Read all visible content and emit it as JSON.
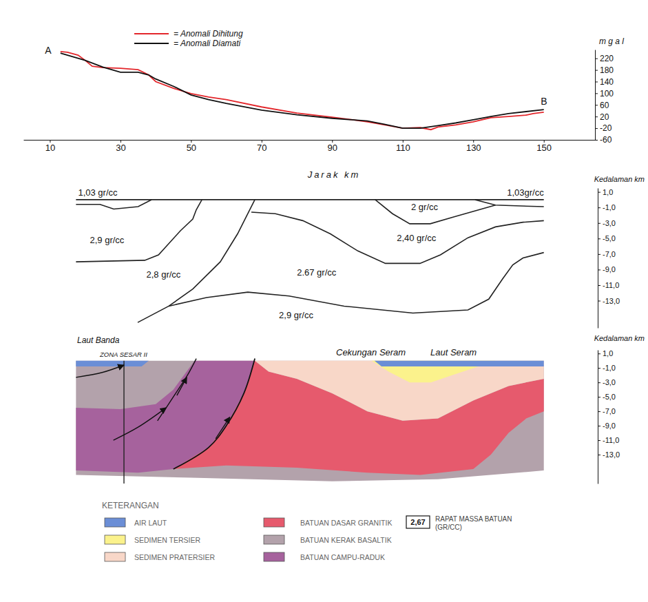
{
  "chart_data": {
    "type": "line",
    "x_label": "Jarak km",
    "y_label": "m g a l",
    "xlim": [
      2.5,
      164.5
    ],
    "xticks": [
      10,
      30,
      50,
      70,
      90,
      110,
      130,
      150
    ],
    "ylim": [
      -60,
      250
    ],
    "yticks": [
      220,
      180,
      140,
      100,
      60,
      20,
      -20,
      -60
    ],
    "legend": "upper left",
    "annotations": [
      "A",
      "B"
    ],
    "series": [
      {
        "name": "= Anomali Dihitung",
        "color": "#e3262b",
        "x": [
          13,
          15,
          18,
          20,
          22,
          25,
          30,
          35,
          38,
          40,
          45,
          50,
          55,
          60,
          70,
          80,
          90,
          100,
          105,
          110,
          115,
          118,
          120,
          125,
          130,
          135,
          140,
          145,
          147,
          150
        ],
        "values": [
          243,
          241,
          231,
          213,
          193,
          188,
          186,
          181,
          163,
          140,
          117,
          99,
          87,
          78,
          53,
          32,
          18,
          2,
          -9,
          -20,
          -18,
          -25,
          -16,
          -9,
          2,
          16,
          20,
          25,
          30,
          35
        ]
      },
      {
        "name": "= Anomali Diamati",
        "color": "#111111",
        "x": [
          13,
          20,
          25,
          30,
          35,
          38,
          40,
          45,
          50,
          55,
          60,
          70,
          80,
          90,
          100,
          105,
          110,
          115,
          120,
          125,
          130,
          135,
          140,
          145,
          150
        ],
        "values": [
          238,
          213,
          190,
          172,
          172,
          163,
          149,
          124,
          94,
          78,
          65,
          42,
          26,
          14,
          5,
          -7,
          -20,
          -20,
          -11,
          -2,
          9,
          20,
          30,
          37,
          44
        ]
      }
    ]
  },
  "density_model": {
    "depth_label": "Kedalaman km",
    "ylim": [
      1.5,
      -16.5
    ],
    "yticks": [
      {
        "value": 1,
        "label": "1,0"
      },
      {
        "value": -1,
        "label": "-1,0"
      },
      {
        "value": -3,
        "label": "-3,0"
      },
      {
        "value": -5,
        "label": "-5,0"
      },
      {
        "value": -7,
        "label": "-7,0"
      },
      {
        "value": -9,
        "label": "-9,0"
      },
      {
        "value": -11,
        "label": "-11,0"
      },
      {
        "value": -13,
        "label": "-13,0"
      }
    ],
    "labels": [
      "1,03 gr/cc",
      "1,03gr/cc",
      "2,9 gr/cc",
      "2,8 gr/cc",
      "2.67 gr/cc",
      "2,40 gr/cc",
      "2 gr/cc",
      "2,9 gr/cc"
    ],
    "boundaries": [
      {
        "x": [
          17.4,
          150
        ],
        "depth": [
          0,
          0
        ]
      },
      {
        "x": [
          17.4,
          24.2,
          28.1,
          35,
          38.8
        ],
        "depth": [
          -0.6,
          -0.6,
          -1.2,
          -0.9,
          0
        ]
      },
      {
        "x": [
          17.4,
          36.9,
          40.8,
          47,
          50.5,
          51.5,
          53.1
        ],
        "depth": [
          -8,
          -7.8,
          -7.1,
          -4,
          -2.5,
          -1.3,
          0
        ]
      },
      {
        "x": [
          34.9,
          43.7,
          50.5,
          58.3,
          63.2,
          66.1,
          68.1
        ],
        "depth": [
          -15.8,
          -13.7,
          -11.5,
          -8,
          -4.4,
          -1.8,
          0
        ]
      },
      {
        "x": [
          43.7,
          54.4,
          66.1,
          77.8,
          93.4,
          112.9,
          128.5,
          134.4,
          138.3,
          141.2,
          144.1,
          150
        ],
        "depth": [
          -13.7,
          -12.6,
          -11.9,
          -12.4,
          -13.7,
          -14.6,
          -14.2,
          -12.8,
          -10.2,
          -8.4,
          -7.5,
          -6.8
        ]
      },
      {
        "x": [
          67.1,
          73.9,
          81.7,
          89.5,
          97.3,
          105.1,
          114.9,
          120.7,
          128.5,
          136.3,
          144.1,
          150
        ],
        "depth": [
          -1.6,
          -1.8,
          -2.7,
          -4.4,
          -6.6,
          -8.2,
          -8.2,
          -7.1,
          -4.9,
          -3.5,
          -2.9,
          -2.7
        ]
      },
      {
        "x": [
          102.2,
          107.1,
          112,
          117.8,
          124.6,
          136.3
        ],
        "depth": [
          0,
          -1.8,
          -3.1,
          -3.1,
          -2.2,
          -0.7
        ]
      },
      {
        "x": [
          130.5,
          136.3,
          150
        ],
        "depth": [
          0,
          -0.7,
          -0.9
        ]
      }
    ]
  },
  "section": {
    "depth_label": "Kedalaman km",
    "ylim": [
      1.5,
      -17
    ],
    "yticks": [
      {
        "value": 1,
        "label": "1,0"
      },
      {
        "value": -1,
        "label": "-1,0"
      },
      {
        "value": -3,
        "label": "-3,0"
      },
      {
        "value": -5,
        "label": "-5,0"
      },
      {
        "value": -7,
        "label": "-7,0"
      },
      {
        "value": -9,
        "label": "-9,0"
      },
      {
        "value": -11,
        "label": "-11,0"
      },
      {
        "value": -13,
        "label": "-13,0"
      }
    ],
    "labels": [
      "Laut Banda",
      "ZONA SESAR II",
      "Cekungan Seram",
      "Laut Seram"
    ],
    "bodies": [
      {
        "color": "#b3a2ab",
        "x": [
          17.4,
          150,
          150,
          120,
          90,
          50,
          17.4
        ],
        "depth": [
          0,
          0,
          -15.2,
          -16.4,
          -16.7,
          -16.2,
          -15.8
        ]
      },
      {
        "color": "#a6629d",
        "x": [
          17.4,
          30,
          40,
          45,
          48,
          51,
          68.1,
          65,
          60,
          55,
          45,
          35,
          17.4
        ],
        "depth": [
          -6.5,
          -6.7,
          -6,
          -4,
          -2,
          0,
          0,
          -4.5,
          -9,
          -12,
          -15,
          -15.5,
          -15.2
        ]
      },
      {
        "color": "#e65a6d",
        "x": [
          68.1,
          72,
          80,
          90,
          100,
          110,
          120,
          130,
          140,
          150,
          150,
          145,
          140,
          135,
          130,
          115,
          100,
          80,
          60,
          45,
          55,
          60,
          65
        ],
        "depth": [
          0,
          -1.5,
          -2.5,
          -4.5,
          -7,
          -8.3,
          -8,
          -5.5,
          -3.5,
          -2.5,
          -7,
          -8,
          -10,
          -13,
          -15,
          -15.8,
          -15.5,
          -14.8,
          -14.5,
          -15,
          -12,
          -9,
          -4.5
        ]
      },
      {
        "color": "#f8d7c8",
        "x": [
          68.1,
          150,
          150,
          140,
          130,
          120,
          110,
          100,
          90,
          80,
          72
        ],
        "depth": [
          0,
          0,
          -2.5,
          -3.5,
          -5.5,
          -8,
          -8.3,
          -7,
          -4.5,
          -2.5,
          -1.5
        ]
      },
      {
        "color": "#fbf28c",
        "x": [
          101.2,
          106,
          112,
          118,
          124,
          136.3
        ],
        "depth": [
          0,
          -1.5,
          -3,
          -3,
          -2,
          0
        ]
      },
      {
        "color": "#6b8ed6",
        "x": [
          17.4,
          38,
          36,
          17.4
        ],
        "depth": [
          0,
          0,
          -0.8,
          -0.8
        ]
      },
      {
        "color": "#6b8ed6",
        "x": [
          102,
          150,
          150,
          104
        ],
        "depth": [
          0,
          0,
          -0.8,
          -0.8
        ]
      }
    ],
    "legend_title": "KETERANGAN",
    "legend": [
      {
        "name": "AIR LAUT",
        "color": "#6b8ed6"
      },
      {
        "name": "SEDIMEN TERSIER",
        "color": "#fbf28c"
      },
      {
        "name": "SEDIMEN PRATERSIER",
        "color": "#f8d7c8"
      },
      {
        "name": "BATUAN DASAR GRANITIK",
        "color": "#e65a6d"
      },
      {
        "name": "BATUAN KERAK BASALTIK",
        "color": "#b3a2ab"
      },
      {
        "name": "BATUAN CAMPU-RADUK",
        "color": "#a6629d"
      }
    ],
    "key": {
      "label": "2,67",
      "text": [
        "RAPAT MASSA BATUAN",
        "(GR/CC)"
      ]
    }
  }
}
